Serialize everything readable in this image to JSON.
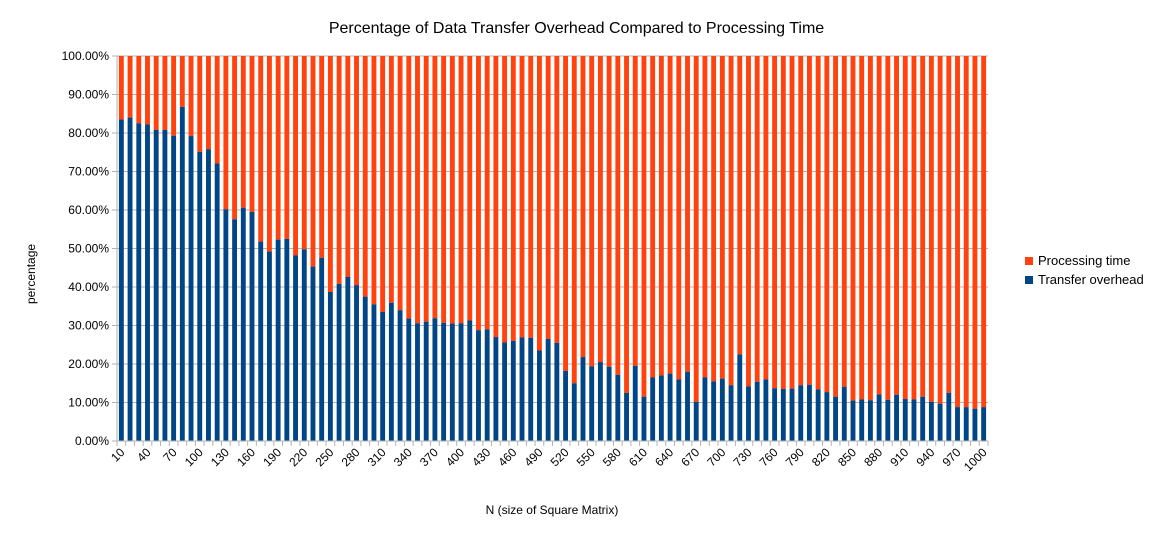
{
  "chart_data": {
    "type": "bar",
    "stacked": true,
    "title": "Percentage of Data Transfer Overhead Compared to Processing Time",
    "xlabel": "N (size of Square Matrix)",
    "ylabel": "percentage",
    "ylim": [
      0,
      100
    ],
    "yticks": [
      "0.00%",
      "10.00%",
      "20.00%",
      "30.00%",
      "40.00%",
      "50.00%",
      "60.00%",
      "70.00%",
      "80.00%",
      "90.00%",
      "100.00%"
    ],
    "grid": true,
    "legend_position": "right",
    "x_tick_labels": [
      "10",
      "40",
      "70",
      "100",
      "130",
      "160",
      "190",
      "220",
      "250",
      "280",
      "310",
      "340",
      "370",
      "400",
      "430",
      "460",
      "490",
      "520",
      "550",
      "580",
      "610",
      "640",
      "670",
      "700",
      "730",
      "760",
      "790",
      "820",
      "850",
      "880",
      "910",
      "940",
      "970",
      "1000"
    ],
    "x": [
      10,
      20,
      30,
      40,
      50,
      60,
      70,
      80,
      90,
      100,
      110,
      120,
      130,
      140,
      150,
      160,
      170,
      180,
      190,
      200,
      210,
      220,
      230,
      240,
      250,
      260,
      270,
      280,
      290,
      300,
      310,
      320,
      330,
      340,
      350,
      360,
      370,
      380,
      390,
      400,
      410,
      420,
      430,
      440,
      450,
      460,
      470,
      480,
      490,
      500,
      510,
      520,
      530,
      540,
      550,
      560,
      570,
      580,
      590,
      600,
      610,
      620,
      630,
      640,
      650,
      660,
      670,
      680,
      690,
      700,
      710,
      720,
      730,
      740,
      750,
      760,
      770,
      780,
      790,
      800,
      810,
      820,
      830,
      840,
      850,
      860,
      870,
      880,
      890,
      900,
      910,
      920,
      930,
      940,
      950,
      960,
      970,
      980,
      990,
      1000
    ],
    "series": [
      {
        "name": "Transfer overhead",
        "color": "#004586",
        "values": [
          83.5,
          84,
          82.5,
          82.2,
          80.8,
          80.8,
          79.3,
          86.8,
          79.2,
          75.1,
          75.8,
          72.1,
          60.2,
          57.6,
          60.6,
          59.5,
          51.8,
          49.2,
          52.3,
          52.5,
          48.2,
          49.8,
          45.3,
          47.6,
          38.7,
          40.8,
          42.6,
          40.5,
          37.5,
          35.5,
          33.5,
          35.9,
          34,
          31.8,
          30.6,
          31,
          31.9,
          30.7,
          30.5,
          30.6,
          31.3,
          28.8,
          29,
          27,
          25.6,
          26,
          26.9,
          26.8,
          23.5,
          26.5,
          25.5,
          18.2,
          15,
          21.8,
          19.4,
          20.5,
          19.3,
          17.2,
          12.5,
          19.5,
          11.5,
          16.5,
          17,
          17.5,
          16,
          18,
          10.2,
          16.5,
          15.5,
          16.2,
          14.5,
          22.5,
          14.2,
          15.4,
          16,
          13.7,
          13.5,
          13.6,
          14.5,
          14.6,
          13.4,
          12.7,
          11.5,
          14.1,
          10.5,
          10.8,
          10.6,
          12.1,
          10.7,
          12,
          10.9,
          10.8,
          11.5,
          10.2,
          9.7,
          12.5,
          8.8,
          8.8,
          8.4,
          8.8
        ]
      },
      {
        "name": "Processing time",
        "color": "#ff420e",
        "values": "remainder to 100%"
      }
    ]
  }
}
